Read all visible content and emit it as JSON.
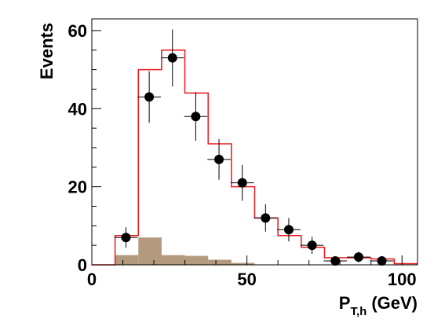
{
  "chart_data": {
    "type": "histogram",
    "xlabel": {
      "main": "P",
      "sub": "T,h",
      "unit": "(GeV)"
    },
    "ylabel": "Events",
    "xlim": [
      0,
      105
    ],
    "ylim": [
      0,
      63
    ],
    "x_ticks": [
      0,
      50,
      100
    ],
    "y_ticks": [
      0,
      20,
      40,
      60
    ],
    "grid": false,
    "series": [
      {
        "kind": "step",
        "color": "#e8191e",
        "bin_edges": [
          0,
          7.5,
          15,
          22.5,
          30,
          37.5,
          45,
          52.5,
          60,
          67.5,
          75,
          82.5,
          90,
          97.5,
          105
        ],
        "values": [
          0,
          7.5,
          50,
          55,
          44,
          31,
          20,
          12,
          7.5,
          4.5,
          1.8,
          1.8,
          1.5,
          0.3
        ]
      },
      {
        "kind": "filled",
        "color": "#b39a7e",
        "bin_edges": [
          0,
          7.5,
          15,
          22.5,
          30,
          37.5,
          45,
          52.5,
          60,
          67.5,
          75,
          82.5,
          90,
          97.5,
          105
        ],
        "values": [
          0,
          2.5,
          7,
          2.5,
          2.3,
          1.3,
          0.5,
          0,
          0,
          0,
          0,
          0,
          0,
          0
        ]
      },
      {
        "kind": "points",
        "color": "#000000",
        "x": [
          11,
          18.5,
          26,
          33.5,
          41,
          48.5,
          56,
          63.5,
          71,
          78.5,
          86,
          93.5
        ],
        "y": [
          7,
          43,
          53,
          38,
          27,
          21,
          12,
          9,
          5,
          1,
          2,
          1
        ],
        "yerr": [
          2.6,
          6.6,
          7.3,
          6.2,
          5.2,
          4.6,
          3.5,
          3.0,
          2.2,
          1.0,
          1.4,
          1.0
        ],
        "xerr": 3.75
      }
    ]
  }
}
